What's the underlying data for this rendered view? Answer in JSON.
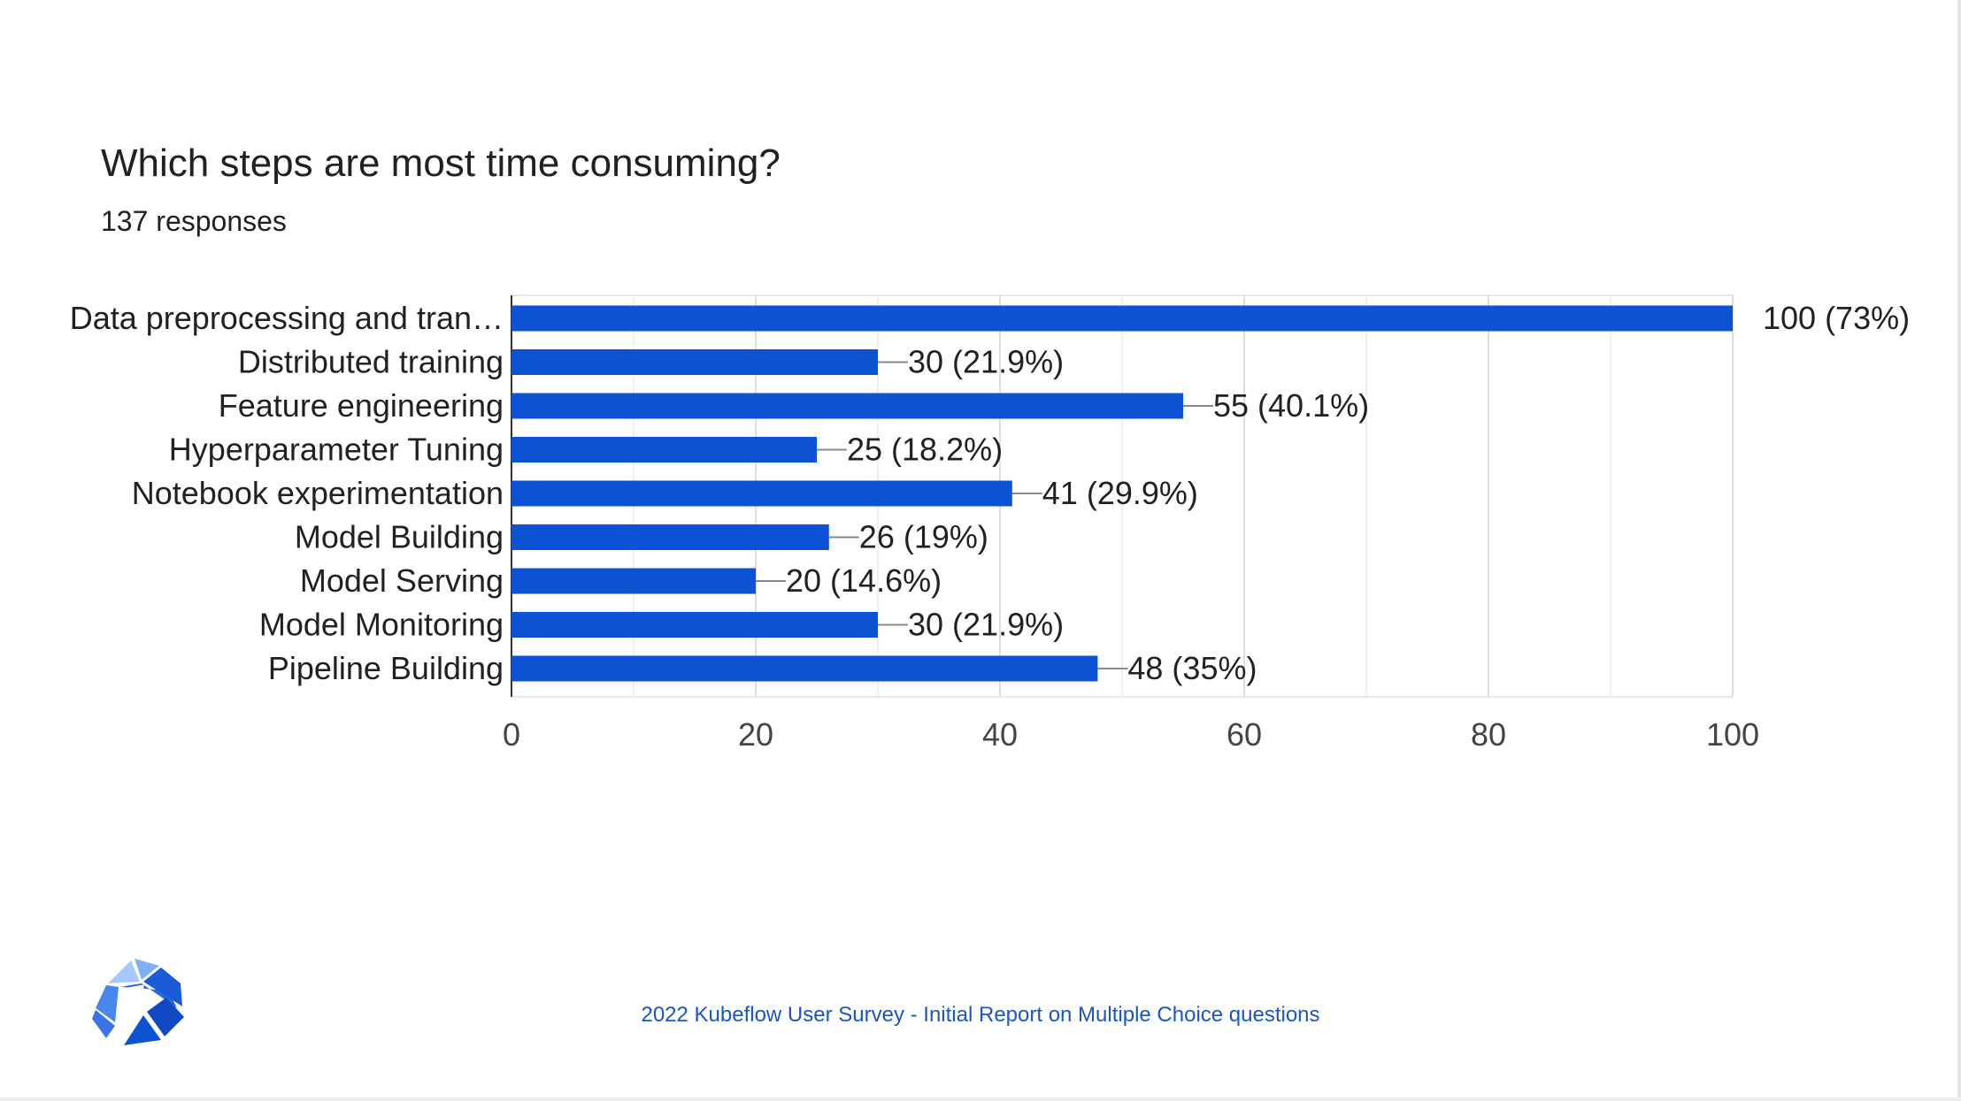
{
  "header": {
    "title": "Which steps are most time consuming?",
    "subtitle": "137 responses"
  },
  "footer": {
    "text": "2022 Kubeflow User Survey - Initial Report on Multiple Choice questions"
  },
  "logo": {
    "icon": "kubeflow-logo-icon"
  },
  "colors": {
    "bar": "#0d52d3",
    "accent": "#1a56c8"
  },
  "chart_data": {
    "type": "bar",
    "orientation": "horizontal",
    "title": "Which steps are most time consuming?",
    "subtitle": "137 responses",
    "categories": [
      "Data preprocessing and tran…",
      "Distributed training",
      "Feature engineering",
      "Hyperparameter Tuning",
      "Notebook experimentation",
      "Model Building",
      "Model Serving",
      "Model Monitoring",
      "Pipeline Building"
    ],
    "values": [
      100,
      30,
      55,
      25,
      41,
      26,
      20,
      30,
      48
    ],
    "data_labels": [
      "100 (73%)",
      "30 (21.9%)",
      "55 (40.1%)",
      "25 (18.2%)",
      "41 (29.9%)",
      "26 (19%)",
      "20 (14.6%)",
      "30 (21.9%)",
      "48 (35%)"
    ],
    "xlim": [
      0,
      100
    ],
    "xticks": [
      0,
      20,
      40,
      60,
      80,
      100
    ],
    "xtick_labels": [
      "0",
      "20",
      "40",
      "60",
      "80",
      "100"
    ],
    "grid": true,
    "legend": "none"
  }
}
